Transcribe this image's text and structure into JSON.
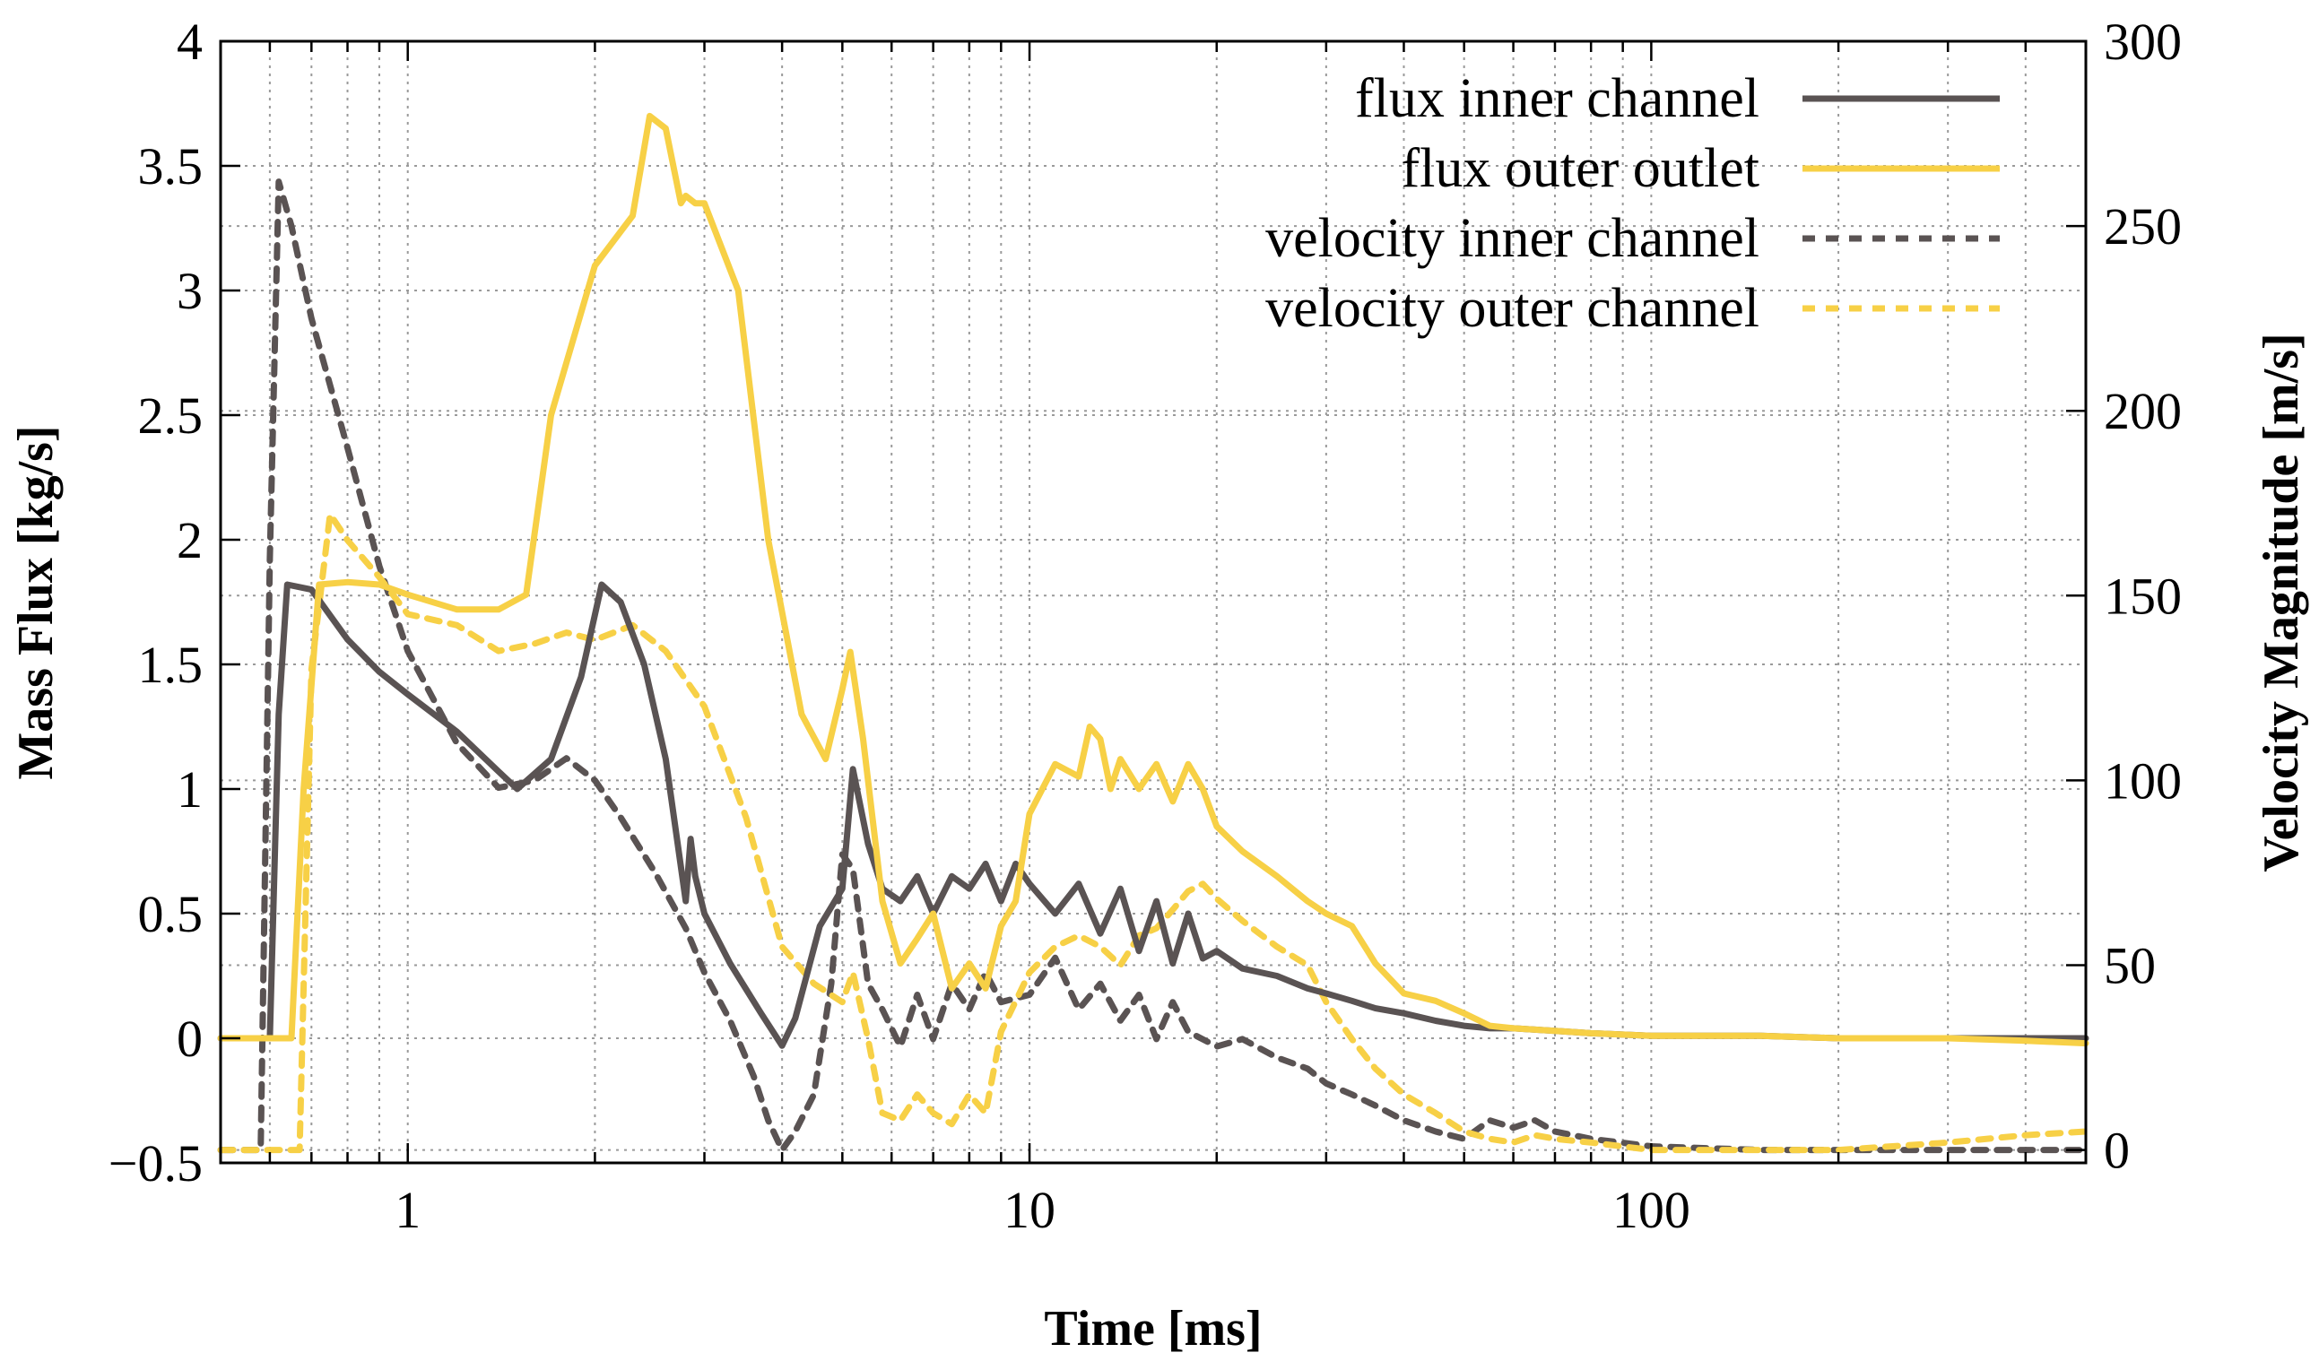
{
  "chart_data": {
    "type": "line",
    "xlabel": "Time [ms]",
    "ylabel": "Mass Flux [kg/s]",
    "y2label": "Velocity Magnitude [m/s]",
    "x_scale": "log",
    "xlim": [
      0.5,
      500
    ],
    "ylim": [
      -0.5,
      4
    ],
    "y2lim": [
      -3.5,
      300
    ],
    "grid": true,
    "legend_position": "top-right",
    "x_ticks": [
      1,
      10,
      100
    ],
    "x_tick_labels": [
      "1",
      "10",
      "100"
    ],
    "y_ticks": [
      -0.5,
      0,
      0.5,
      1,
      1.5,
      2,
      2.5,
      3,
      3.5,
      4
    ],
    "y_tick_labels": [
      "−0.5",
      "0",
      "0.5",
      "1",
      "1.5",
      "2",
      "2.5",
      "3",
      "3.5",
      "4"
    ],
    "y2_ticks": [
      0,
      50,
      100,
      150,
      200,
      250,
      300
    ],
    "y2_tick_labels": [
      "0",
      "50",
      "100",
      "150",
      "200",
      "250",
      "300"
    ],
    "series": [
      {
        "name": "flux inner channel",
        "axis": "left",
        "color": "#5a5353",
        "dash": "solid",
        "x": [
          0.5,
          0.6,
          0.62,
          0.64,
          0.7,
          0.8,
          0.9,
          1.0,
          1.2,
          1.4,
          1.5,
          1.7,
          1.9,
          2.05,
          2.2,
          2.4,
          2.6,
          2.8,
          2.85,
          2.9,
          3.0,
          3.3,
          3.7,
          4.0,
          4.2,
          4.6,
          5.0,
          5.2,
          5.5,
          5.8,
          6.2,
          6.6,
          7.0,
          7.5,
          8.0,
          8.5,
          9.0,
          9.5,
          10,
          11,
          12,
          13,
          14,
          15,
          16,
          17,
          18,
          19,
          20,
          22,
          25,
          28,
          30,
          33,
          36,
          40,
          45,
          50,
          55,
          60,
          70,
          80,
          100,
          150,
          200,
          300,
          400,
          500
        ],
        "y": [
          0,
          0,
          1.3,
          1.82,
          1.8,
          1.6,
          1.47,
          1.38,
          1.23,
          1.07,
          1.0,
          1.12,
          1.45,
          1.82,
          1.75,
          1.5,
          1.12,
          0.55,
          0.8,
          0.65,
          0.5,
          0.3,
          0.1,
          -0.03,
          0.08,
          0.45,
          0.6,
          1.08,
          0.78,
          0.6,
          0.55,
          0.65,
          0.5,
          0.65,
          0.6,
          0.7,
          0.55,
          0.7,
          0.62,
          0.5,
          0.62,
          0.42,
          0.6,
          0.35,
          0.55,
          0.3,
          0.5,
          0.32,
          0.35,
          0.28,
          0.25,
          0.2,
          0.18,
          0.15,
          0.12,
          0.1,
          0.07,
          0.05,
          0.04,
          0.04,
          0.03,
          0.02,
          0.01,
          0.01,
          0.0,
          0.0,
          0.0,
          0.0
        ]
      },
      {
        "name": "flux outer outlet",
        "axis": "left",
        "color": "#f7d046",
        "dash": "solid",
        "x": [
          0.5,
          0.65,
          0.68,
          0.72,
          0.8,
          0.9,
          1.0,
          1.2,
          1.4,
          1.55,
          1.7,
          2.0,
          2.3,
          2.45,
          2.6,
          2.75,
          2.8,
          2.9,
          3.0,
          3.4,
          3.8,
          4.3,
          4.7,
          5.0,
          5.15,
          5.4,
          5.8,
          6.2,
          6.6,
          7.0,
          7.5,
          8.0,
          8.5,
          9.0,
          9.5,
          10,
          11,
          12,
          12.5,
          13,
          13.5,
          14,
          15,
          16,
          17,
          18,
          19,
          20,
          22,
          25,
          28,
          30,
          33,
          36,
          40,
          45,
          50,
          55,
          60,
          70,
          80,
          100,
          150,
          200,
          300,
          400,
          500
        ],
        "y": [
          0,
          0,
          1.0,
          1.82,
          1.83,
          1.82,
          1.78,
          1.72,
          1.72,
          1.78,
          2.5,
          3.1,
          3.3,
          3.7,
          3.65,
          3.35,
          3.38,
          3.35,
          3.35,
          3.0,
          2.0,
          1.3,
          1.12,
          1.4,
          1.55,
          1.2,
          0.55,
          0.3,
          0.4,
          0.5,
          0.2,
          0.3,
          0.2,
          0.45,
          0.55,
          0.9,
          1.1,
          1.05,
          1.25,
          1.2,
          1.0,
          1.12,
          1.0,
          1.1,
          0.95,
          1.1,
          1.0,
          0.85,
          0.75,
          0.65,
          0.55,
          0.5,
          0.45,
          0.3,
          0.18,
          0.15,
          0.1,
          0.05,
          0.04,
          0.03,
          0.02,
          0.01,
          0.01,
          0.0,
          0.0,
          -0.01,
          -0.02
        ]
      },
      {
        "name": "velocity inner channel",
        "axis": "right",
        "color": "#5a5353",
        "dash": "dashed",
        "x": [
          0.5,
          0.58,
          0.6,
          0.62,
          0.65,
          0.7,
          0.8,
          0.9,
          1.0,
          1.2,
          1.4,
          1.6,
          1.8,
          2.0,
          2.2,
          2.5,
          2.8,
          3.0,
          3.3,
          3.6,
          3.8,
          4.0,
          4.2,
          4.5,
          4.8,
          5.0,
          5.2,
          5.5,
          5.8,
          6.2,
          6.6,
          7.0,
          7.5,
          8.0,
          8.5,
          9.0,
          10,
          11,
          12,
          13,
          14,
          15,
          16,
          17,
          18,
          20,
          22,
          25,
          28,
          30,
          33,
          36,
          40,
          45,
          50,
          55,
          60,
          65,
          70,
          80,
          100,
          150,
          200,
          300,
          400,
          500
        ],
        "y": [
          0,
          0,
          160,
          262,
          250,
          225,
          190,
          158,
          135,
          110,
          98,
          100,
          106,
          100,
          90,
          75,
          60,
          48,
          35,
          20,
          8,
          0,
          5,
          15,
          45,
          80,
          76,
          45,
          38,
          28,
          42,
          30,
          45,
          38,
          48,
          40,
          42,
          52,
          38,
          45,
          35,
          42,
          30,
          40,
          32,
          28,
          30,
          25,
          22,
          18,
          15,
          12,
          8,
          5,
          3,
          8,
          6,
          8,
          5,
          3,
          1,
          0,
          0,
          0,
          0,
          0
        ]
      },
      {
        "name": "velocity outer channel",
        "axis": "right",
        "color": "#f7d046",
        "dash": "dashed",
        "x": [
          0.5,
          0.67,
          0.7,
          0.75,
          0.8,
          0.9,
          1.0,
          1.2,
          1.4,
          1.6,
          1.8,
          2.0,
          2.3,
          2.6,
          3.0,
          3.5,
          4.0,
          4.5,
          5.0,
          5.2,
          5.5,
          5.8,
          6.2,
          6.6,
          7.0,
          7.5,
          8.0,
          8.5,
          9.0,
          10,
          11,
          12,
          13,
          14,
          15,
          16,
          17,
          18,
          19,
          20,
          22,
          25,
          28,
          30,
          33,
          36,
          40,
          45,
          50,
          55,
          60,
          65,
          70,
          80,
          100,
          150,
          200,
          300,
          400,
          500
        ],
        "y": [
          0,
          0,
          130,
          172,
          165,
          155,
          145,
          142,
          135,
          137,
          140,
          138,
          142,
          135,
          120,
          90,
          55,
          45,
          40,
          48,
          30,
          10,
          8,
          15,
          10,
          7,
          15,
          10,
          32,
          48,
          55,
          58,
          55,
          50,
          58,
          60,
          65,
          70,
          72,
          68,
          62,
          55,
          50,
          40,
          30,
          22,
          15,
          10,
          5,
          3,
          2,
          4,
          3,
          2,
          0,
          0,
          0,
          2,
          4,
          5
        ]
      }
    ]
  }
}
